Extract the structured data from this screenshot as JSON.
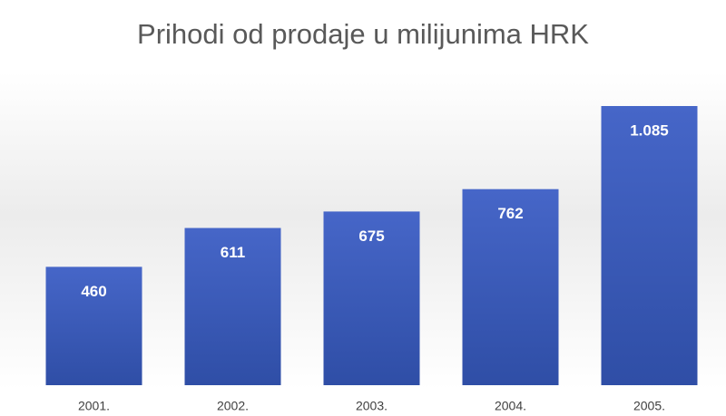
{
  "chart_data": {
    "type": "bar",
    "title": "Prihodi od prodaje u milijunima HRK",
    "categories": [
      "2001.",
      "2002.",
      "2003.",
      "2004.",
      "2005."
    ],
    "values": [
      460,
      611,
      675,
      762,
      1085
    ],
    "value_labels": [
      "460",
      "611",
      "675",
      "762",
      "1.085"
    ],
    "color": "#3f5fbf"
  }
}
